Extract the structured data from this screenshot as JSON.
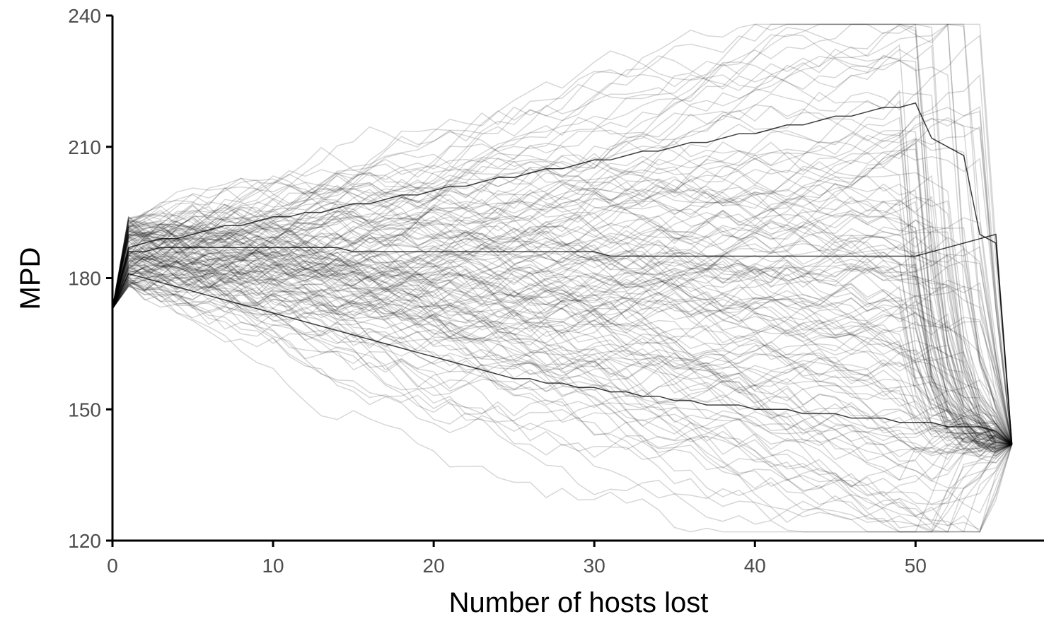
{
  "chart_data": {
    "type": "line",
    "title": "",
    "xlabel": "Number of hosts lost",
    "ylabel": "MPD",
    "xlim": [
      0,
      58
    ],
    "ylim": [
      120,
      240
    ],
    "xticks": [
      0,
      10,
      20,
      30,
      40,
      50
    ],
    "xtick_labels": [
      "0",
      "10",
      "20",
      "30",
      "40",
      "50"
    ],
    "yticks": [
      120,
      150,
      180,
      210,
      240
    ],
    "ytick_labels": [
      "120",
      "150",
      "180",
      "210",
      "240"
    ],
    "grid": false,
    "legend": "none",
    "line_color": "#000000",
    "line_opacity": 0.16,
    "start": {
      "x": 0,
      "y": 173
    },
    "end": {
      "x": 56,
      "y": 142
    },
    "series_groups": [
      {
        "description": "upper-trending",
        "mid_y_at_x44": 220,
        "spread": 8,
        "count": 30
      },
      {
        "description": "middle-trending",
        "mid_y_at_x44": 183,
        "spread": 9,
        "count": 60
      },
      {
        "description": "downward-trending",
        "mid_y_at_x44": 150,
        "spread": 8,
        "count": 60
      }
    ],
    "series": [
      {
        "name": "",
        "x": [
          0,
          1,
          2,
          3,
          4,
          5,
          6,
          7,
          8,
          9,
          10,
          11,
          12,
          13,
          14,
          15,
          16,
          17,
          18,
          19,
          20,
          21,
          22,
          23,
          24,
          25,
          26,
          27,
          28,
          29,
          30,
          31,
          32,
          33,
          34,
          35,
          36,
          37,
          38,
          39,
          40,
          41,
          42,
          43,
          44,
          45,
          46,
          47,
          48,
          49,
          50,
          51,
          52,
          53,
          54,
          55,
          56
        ],
        "y": [
          173,
          187,
          188,
          189,
          189,
          190,
          191,
          192,
          192,
          193,
          194,
          194,
          195,
          195,
          196,
          197,
          197,
          198,
          199,
          199,
          200,
          201,
          201,
          202,
          203,
          203,
          204,
          205,
          205,
          206,
          207,
          207,
          208,
          209,
          209,
          210,
          211,
          211,
          212,
          213,
          213,
          214,
          215,
          215,
          216,
          217,
          217,
          218,
          219,
          219,
          220,
          212,
          210,
          208,
          190,
          188,
          142
        ]
      },
      {
        "name": "",
        "x": [
          0,
          1,
          2,
          3,
          4,
          5,
          6,
          7,
          8,
          9,
          10,
          11,
          12,
          13,
          14,
          15,
          16,
          17,
          18,
          19,
          20,
          21,
          22,
          23,
          24,
          25,
          26,
          27,
          28,
          29,
          30,
          31,
          32,
          33,
          34,
          35,
          36,
          37,
          38,
          39,
          40,
          41,
          42,
          43,
          44,
          45,
          46,
          47,
          48,
          49,
          50,
          51,
          52,
          53,
          54,
          55,
          56
        ],
        "y": [
          173,
          186,
          186,
          187,
          187,
          187,
          187,
          187,
          187,
          187,
          187,
          187,
          187,
          187,
          187,
          186,
          186,
          186,
          186,
          186,
          186,
          186,
          186,
          186,
          186,
          186,
          186,
          186,
          186,
          186,
          186,
          185,
          185,
          185,
          185,
          185,
          185,
          185,
          185,
          185,
          185,
          185,
          185,
          185,
          185,
          185,
          185,
          185,
          185,
          185,
          185,
          186,
          187,
          188,
          189,
          190,
          142
        ]
      },
      {
        "name": "",
        "x": [
          0,
          1,
          2,
          3,
          4,
          5,
          6,
          7,
          8,
          9,
          10,
          11,
          12,
          13,
          14,
          15,
          16,
          17,
          18,
          19,
          20,
          21,
          22,
          23,
          24,
          25,
          26,
          27,
          28,
          29,
          30,
          31,
          32,
          33,
          34,
          35,
          36,
          37,
          38,
          39,
          40,
          41,
          42,
          43,
          44,
          45,
          46,
          47,
          48,
          49,
          50,
          51,
          52,
          53,
          54,
          55,
          56
        ],
        "y": [
          173,
          181,
          180,
          179,
          178,
          177,
          176,
          175,
          174,
          173,
          172,
          171,
          170,
          169,
          168,
          167,
          166,
          165,
          164,
          163,
          162,
          161,
          160,
          159,
          158,
          157,
          157,
          156,
          156,
          155,
          155,
          154,
          154,
          153,
          153,
          152,
          152,
          151,
          151,
          151,
          150,
          150,
          150,
          149,
          149,
          149,
          148,
          148,
          148,
          147,
          147,
          147,
          146,
          146,
          146,
          145,
          142
        ]
      }
    ]
  }
}
